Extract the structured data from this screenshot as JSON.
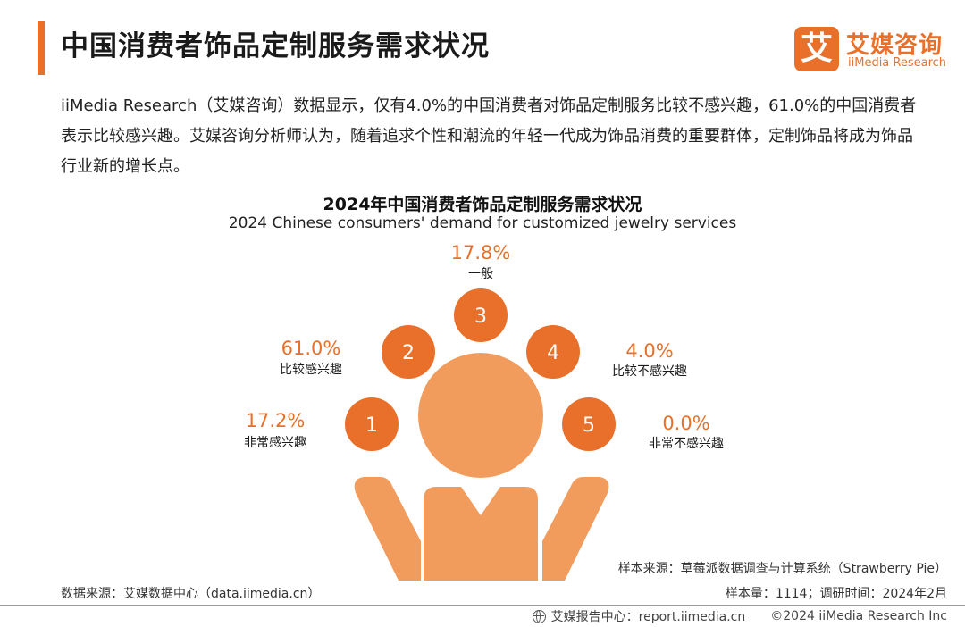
{
  "header": {
    "title": "中国消费者饰品定制服务需求状况",
    "logo_cn": "艾媒咨询",
    "logo_en": "iiMedia Research",
    "logo_glyph": "艾",
    "accent_color": "#e8702a"
  },
  "intro_text": "iiMedia Research（艾媒咨询）数据显示，仅有4.0%的中国消费者对饰品定制服务比较不感兴趣，61.0%的中国消费者表示比较感兴趣。艾媒咨询分析师认为，随着追求个性和潮流的年轻一代成为饰品消费的重要群体，定制饰品将成为饰品行业新的增长点。",
  "chart_data": {
    "type": "pie",
    "title": "2024年中国消费者饰品定制服务需求状况",
    "subtitle": "2024 Chinese consumers' demand for customized jewelry services",
    "unit": "%",
    "items": [
      {
        "number": "1",
        "label": "非常感兴趣",
        "value": 17.2,
        "display": "17.2%"
      },
      {
        "number": "2",
        "label": "比较感兴趣",
        "value": 61.0,
        "display": "61.0%"
      },
      {
        "number": "3",
        "label": "一般",
        "value": 17.8,
        "display": "17.8%"
      },
      {
        "number": "4",
        "label": "比较不感兴趣",
        "value": 4.0,
        "display": "4.0%"
      },
      {
        "number": "5",
        "label": "非常不感兴趣",
        "value": 0.0,
        "display": "0.0%"
      }
    ]
  },
  "footer": {
    "data_source": "数据来源：艾媒数据中心（data.iimedia.cn）",
    "sample_source": "样本来源：草莓派数据调查与计算系统（Strawberry Pie）",
    "sample_size": "样本量：1114；调研时间：2024年2月",
    "report_center": "艾媒报告中心：report.iimedia.cn",
    "copyright": "©2024  iiMedia Research  Inc"
  }
}
